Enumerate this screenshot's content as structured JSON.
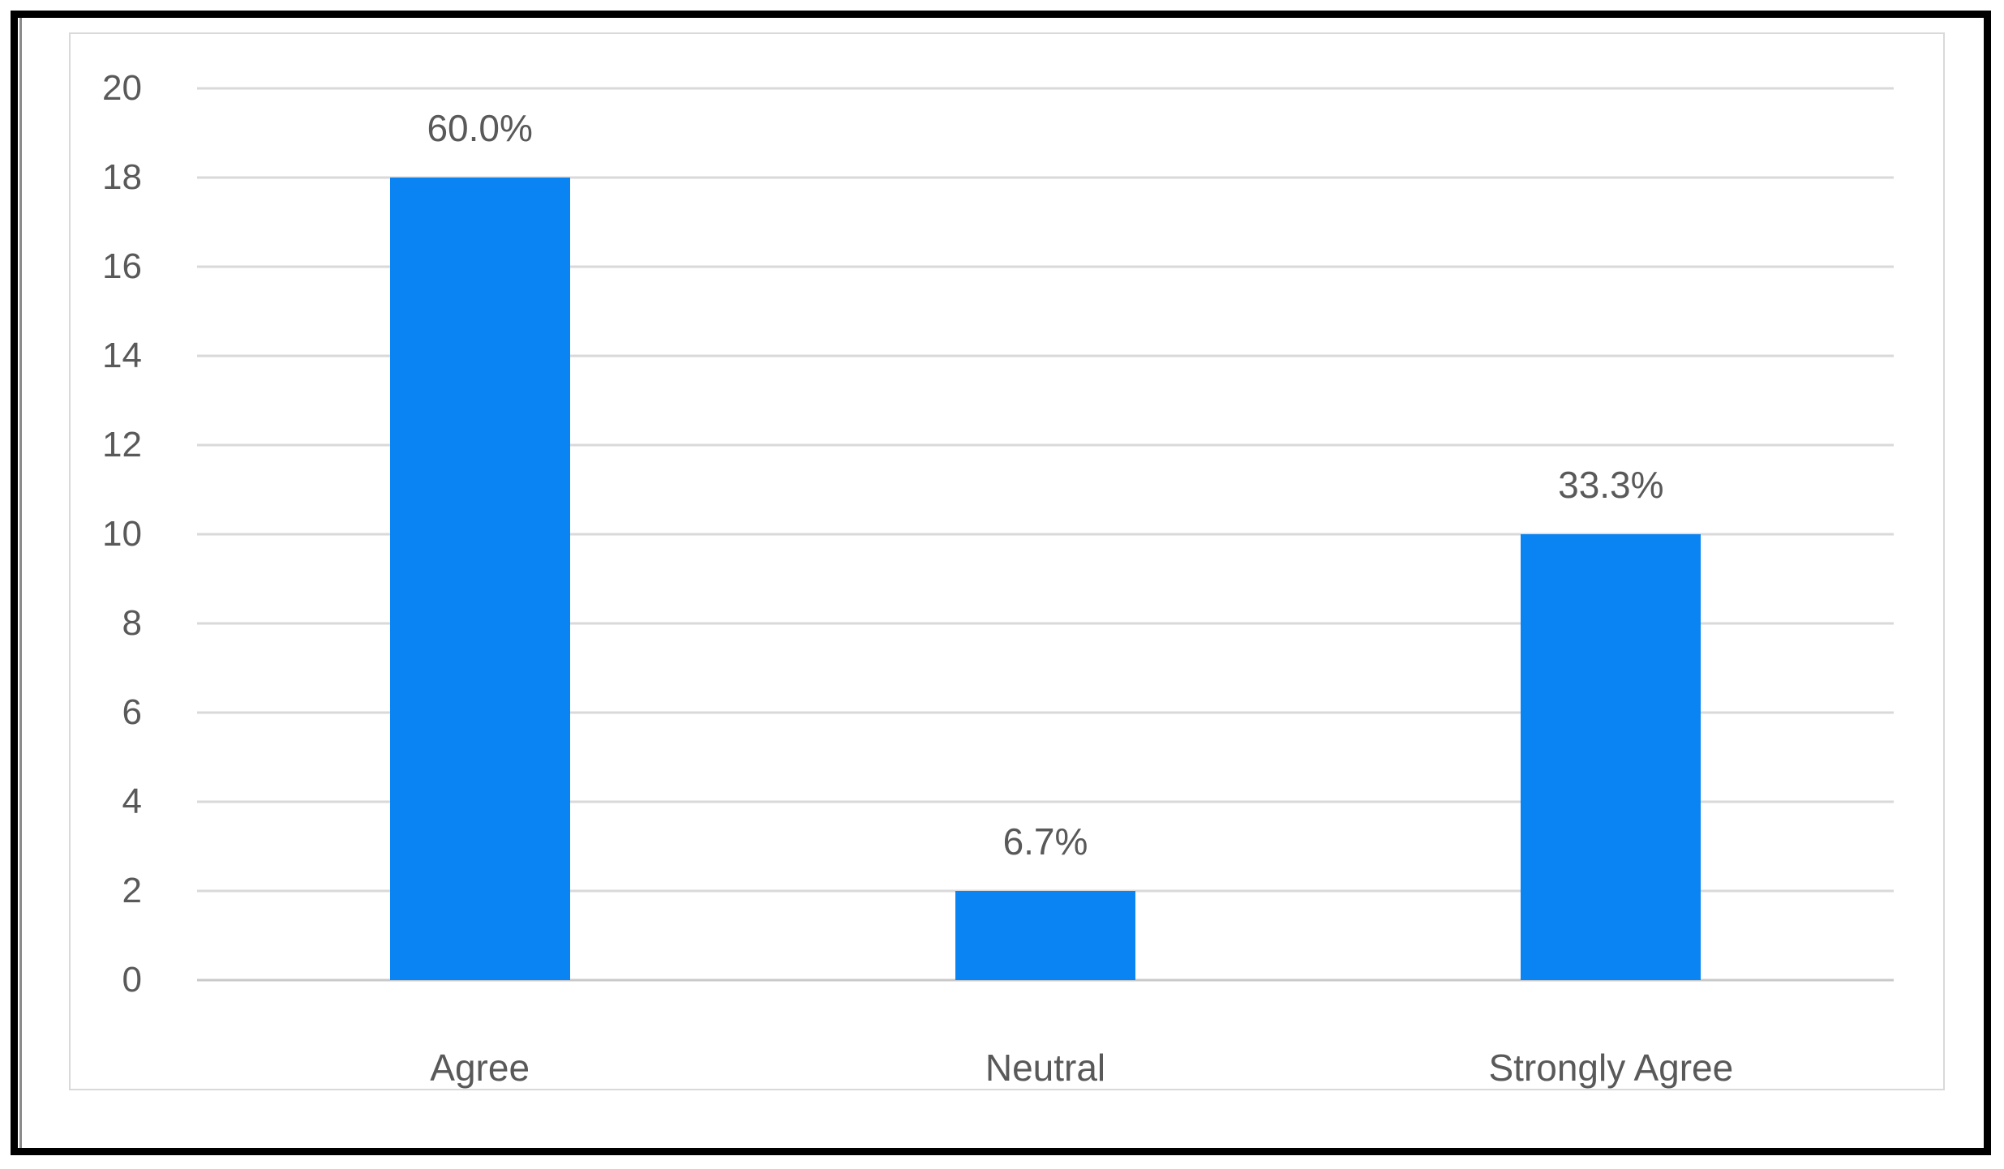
{
  "chart_data": {
    "type": "bar",
    "title": "",
    "xlabel": "",
    "ylabel": "",
    "categories": [
      "Agree",
      "Neutral",
      "Strongly Agree"
    ],
    "values": [
      18,
      2,
      10
    ],
    "bar_labels": [
      "60.0%",
      "6.7%",
      "33.3%"
    ],
    "yticks": [
      0,
      2,
      4,
      6,
      8,
      10,
      12,
      14,
      16,
      18,
      20
    ],
    "ylim": [
      0,
      20
    ],
    "grid": true,
    "legend": false,
    "colors": {
      "bar": "#0984f2",
      "gridline": "#d9d9d9",
      "zero_line": "#c9c9c9",
      "label_text": "#595959",
      "panel_border": "#d9d9d9",
      "frame_border": "#000000",
      "scan_line": "#8b8b8b"
    }
  }
}
